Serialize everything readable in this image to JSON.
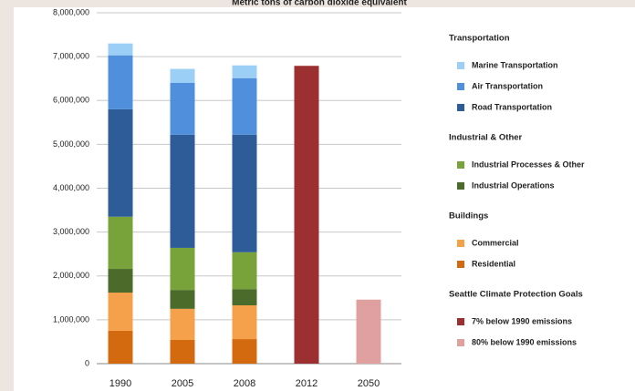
{
  "chart_data": {
    "type": "stacked_bar",
    "title": "Metric tons of carbon dioxide equivalent",
    "categories": [
      "1990",
      "2005",
      "2008",
      "2012",
      "2050"
    ],
    "groups": [
      "Transportation",
      "Industrial & Other",
      "Buildings",
      "Seattle Climate Protection Goals"
    ],
    "series": [
      {
        "name": "Marine Transportation",
        "group": "Transportation",
        "color": "#9ccff5",
        "values": [
          270000,
          320000,
          290000,
          null,
          null
        ]
      },
      {
        "name": "Air Transportation",
        "group": "Transportation",
        "color": "#4f8fdc",
        "values": [
          1230000,
          1180000,
          1290000,
          null,
          null
        ]
      },
      {
        "name": "Road Transportation",
        "group": "Transportation",
        "color": "#2e5c99",
        "values": [
          2450000,
          2580000,
          2680000,
          null,
          null
        ]
      },
      {
        "name": "Industrial Processes & Other",
        "group": "Industrial & Other",
        "color": "#77a33a",
        "values": [
          1190000,
          960000,
          840000,
          null,
          null
        ]
      },
      {
        "name": "Industrial Operations",
        "group": "Industrial & Other",
        "color": "#4a6b2a",
        "values": [
          540000,
          430000,
          370000,
          null,
          null
        ]
      },
      {
        "name": "Commercial",
        "group": "Buildings",
        "color": "#f5a04a",
        "values": [
          870000,
          710000,
          770000,
          null,
          null
        ]
      },
      {
        "name": "Residential",
        "group": "Buildings",
        "color": "#d46a10",
        "values": [
          750000,
          540000,
          560000,
          null,
          null
        ]
      },
      {
        "name": "7% below 1990 emissions",
        "group": "Seattle Climate Protection Goals",
        "color": "#9c3030",
        "values": [
          null,
          null,
          null,
          6790000,
          null
        ]
      },
      {
        "name": "80% below 1990 emissions",
        "group": "Seattle Climate Protection Goals",
        "color": "#e0a0a0",
        "values": [
          null,
          null,
          null,
          null,
          1460000
        ]
      }
    ],
    "ylim": [
      0,
      8000000
    ],
    "yticks": [
      0,
      {
        "value": 1000000,
        "label": "1,000,000"
      },
      {
        "value": 2000000,
        "label": "2,000,000"
      },
      {
        "value": 3000000,
        "label": "3,000,000"
      },
      {
        "value": 4000000,
        "label": "4,000,000"
      },
      {
        "value": 5000000,
        "label": "5,000,000"
      },
      {
        "value": 6000000,
        "label": "6,000,000"
      },
      {
        "value": 7000000,
        "label": "7,000,000"
      },
      {
        "value": 8000000,
        "label": "8,000,000"
      }
    ],
    "grid": true
  }
}
